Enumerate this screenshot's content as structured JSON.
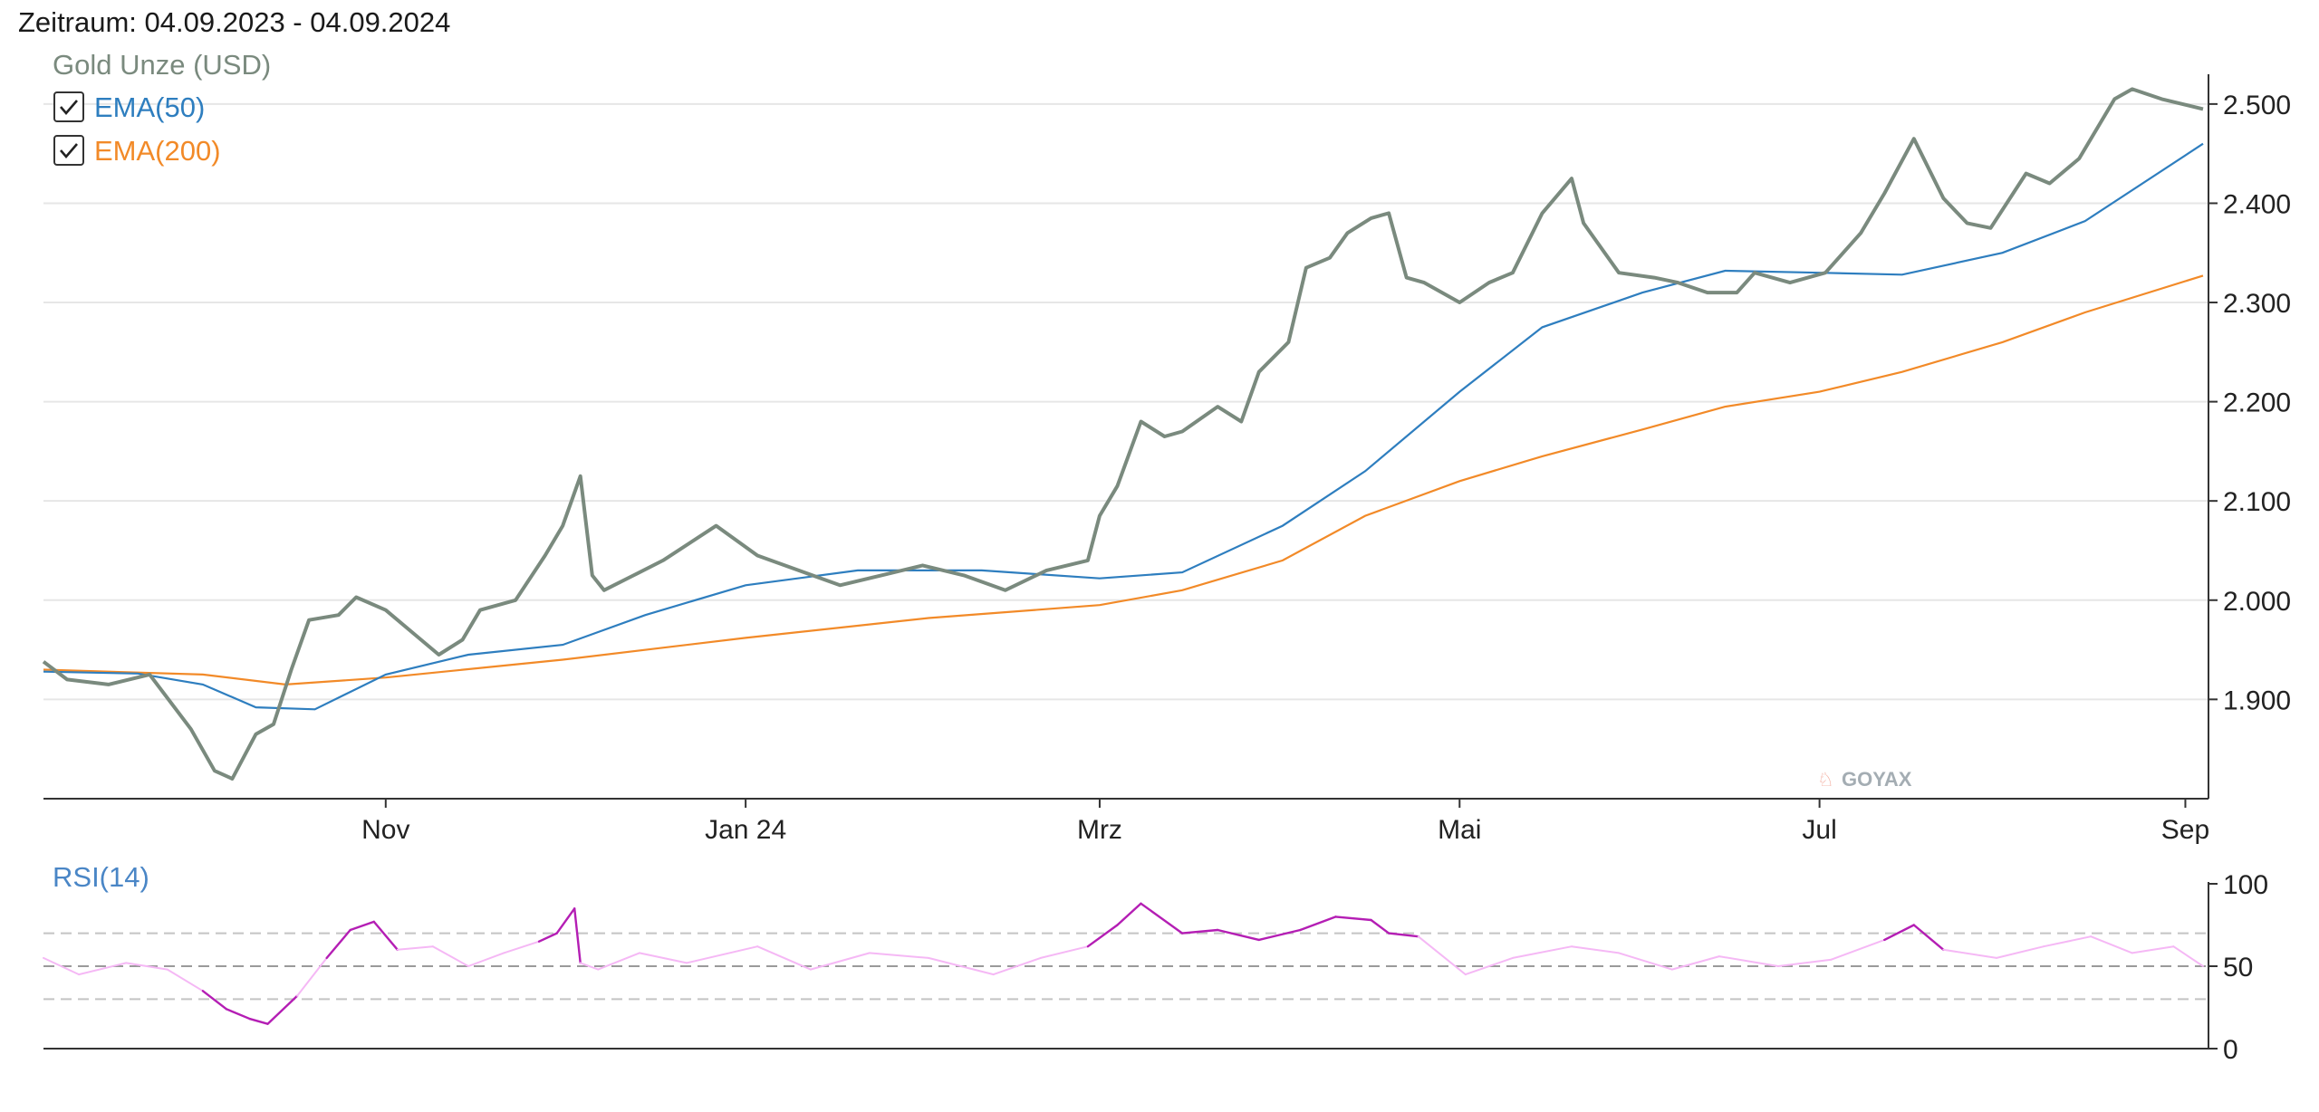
{
  "header": {
    "zeitraum": "Zeitraum: 04.09.2023 - 04.09.2024"
  },
  "watermark": "GOYAX",
  "colors": {
    "price": "#7a8a7e",
    "ema50": "#2e7ebf",
    "ema200": "#f28a28",
    "rsi_strong": "#b41eb4",
    "rsi_light": "#f5b8f5",
    "rsi_label": "#4a86c6",
    "grid": "#e6e6e6",
    "axis": "#333333"
  },
  "chart_data": [
    {
      "id": "price-chart",
      "type": "line",
      "title": "",
      "xlabel": "",
      "ylabel": "",
      "x_domain": [
        "2023-09-04",
        "2024-09-04"
      ],
      "x_ticks": [
        {
          "label": "Nov",
          "date": "2023-11-01"
        },
        {
          "label": "Jan 24",
          "date": "2024-01-01"
        },
        {
          "label": "Mrz",
          "date": "2024-03-01"
        },
        {
          "label": "Mai",
          "date": "2024-05-01"
        },
        {
          "label": "Jul",
          "date": "2024-07-01"
        },
        {
          "label": "Sep",
          "date": "2024-09-01"
        }
      ],
      "ylim": [
        1820,
        2530
      ],
      "y_ticks": [
        {
          "value": 1900,
          "label": "1.900"
        },
        {
          "value": 2000,
          "label": "2.000"
        },
        {
          "value": 2100,
          "label": "2.100"
        },
        {
          "value": 2200,
          "label": "2.200"
        },
        {
          "value": 2300,
          "label": "2.300"
        },
        {
          "value": 2400,
          "label": "2.400"
        },
        {
          "value": 2500,
          "label": "2.500"
        }
      ],
      "legend": {
        "placement": "top-left",
        "title": "Gold Unze (USD)",
        "items": [
          {
            "label": "EMA(50)",
            "checked": true
          },
          {
            "label": "EMA(200)",
            "checked": true
          }
        ]
      },
      "series": [
        {
          "name": "Gold Unze (USD)",
          "x": [
            "2023-09-04",
            "2023-09-08",
            "2023-09-15",
            "2023-09-22",
            "2023-09-29",
            "2023-10-03",
            "2023-10-06",
            "2023-10-10",
            "2023-10-13",
            "2023-10-16",
            "2023-10-19",
            "2023-10-24",
            "2023-10-27",
            "2023-11-01",
            "2023-11-06",
            "2023-11-10",
            "2023-11-14",
            "2023-11-17",
            "2023-11-23",
            "2023-11-28",
            "2023-12-01",
            "2023-12-04",
            "2023-12-06",
            "2023-12-08",
            "2023-12-13",
            "2023-12-18",
            "2023-12-27",
            "2024-01-03",
            "2024-01-10",
            "2024-01-17",
            "2024-01-24",
            "2024-01-31",
            "2024-02-07",
            "2024-02-14",
            "2024-02-21",
            "2024-02-28",
            "2024-03-01",
            "2024-03-04",
            "2024-03-08",
            "2024-03-12",
            "2024-03-15",
            "2024-03-21",
            "2024-03-25",
            "2024-03-28",
            "2024-04-02",
            "2024-04-05",
            "2024-04-09",
            "2024-04-12",
            "2024-04-16",
            "2024-04-19",
            "2024-04-22",
            "2024-04-25",
            "2024-05-01",
            "2024-05-06",
            "2024-05-10",
            "2024-05-15",
            "2024-05-20",
            "2024-05-22",
            "2024-05-28",
            "2024-06-03",
            "2024-06-07",
            "2024-06-12",
            "2024-06-17",
            "2024-06-20",
            "2024-06-26",
            "2024-07-02",
            "2024-07-08",
            "2024-07-12",
            "2024-07-17",
            "2024-07-22",
            "2024-07-26",
            "2024-07-30",
            "2024-08-05",
            "2024-08-09",
            "2024-08-14",
            "2024-08-20",
            "2024-08-23",
            "2024-08-28",
            "2024-09-04"
          ],
          "values": [
            1938,
            1920,
            1915,
            1925,
            1870,
            1828,
            1820,
            1865,
            1875,
            1930,
            1980,
            1985,
            2003,
            1990,
            1965,
            1945,
            1960,
            1990,
            2000,
            2045,
            2075,
            2125,
            2025,
            2010,
            2025,
            2040,
            2075,
            2045,
            2030,
            2015,
            2025,
            2035,
            2025,
            2010,
            2030,
            2040,
            2085,
            2115,
            2180,
            2165,
            2170,
            2195,
            2180,
            2230,
            2260,
            2335,
            2345,
            2370,
            2385,
            2390,
            2325,
            2320,
            2300,
            2320,
            2330,
            2390,
            2425,
            2380,
            2330,
            2325,
            2320,
            2310,
            2310,
            2330,
            2320,
            2330,
            2370,
            2410,
            2465,
            2405,
            2380,
            2375,
            2430,
            2420,
            2445,
            2505,
            2515,
            2505,
            2495
          ]
        },
        {
          "name": "EMA(50)",
          "x": [
            "2023-09-04",
            "2023-09-20",
            "2023-10-01",
            "2023-10-10",
            "2023-10-20",
            "2023-11-01",
            "2023-11-15",
            "2023-12-01",
            "2023-12-15",
            "2024-01-01",
            "2024-01-20",
            "2024-02-10",
            "2024-03-01",
            "2024-03-15",
            "2024-04-01",
            "2024-04-15",
            "2024-05-01",
            "2024-05-15",
            "2024-06-01",
            "2024-06-15",
            "2024-07-01",
            "2024-07-15",
            "2024-08-01",
            "2024-08-15",
            "2024-09-04"
          ],
          "values": [
            1928,
            1926,
            1915,
            1892,
            1890,
            1925,
            1945,
            1955,
            1985,
            2015,
            2030,
            2030,
            2022,
            2028,
            2075,
            2130,
            2210,
            2275,
            2310,
            2332,
            2330,
            2328,
            2350,
            2382,
            2460
          ]
        },
        {
          "name": "EMA(200)",
          "x": [
            "2023-09-04",
            "2023-10-01",
            "2023-10-15",
            "2023-11-01",
            "2023-12-01",
            "2024-01-01",
            "2024-02-01",
            "2024-03-01",
            "2024-03-15",
            "2024-04-01",
            "2024-04-15",
            "2024-05-01",
            "2024-05-15",
            "2024-06-01",
            "2024-06-15",
            "2024-07-01",
            "2024-07-15",
            "2024-08-01",
            "2024-08-15",
            "2024-09-04"
          ],
          "values": [
            1930,
            1925,
            1915,
            1922,
            1940,
            1962,
            1982,
            1995,
            2010,
            2040,
            2085,
            2120,
            2145,
            2172,
            2195,
            2210,
            2230,
            2260,
            2290,
            2327
          ]
        }
      ]
    },
    {
      "id": "rsi-chart",
      "type": "line",
      "title": "RSI(14)",
      "xlabel": "",
      "ylabel": "",
      "x_domain": [
        "2023-09-04",
        "2024-09-04"
      ],
      "ylim": [
        0,
        100
      ],
      "y_ticks": [
        {
          "value": 0,
          "label": "0"
        },
        {
          "value": 50,
          "label": "50"
        },
        {
          "value": 100,
          "label": "100"
        }
      ],
      "reference_lines": [
        30,
        50,
        70
      ],
      "overbought": 70,
      "oversold": 30,
      "series": [
        {
          "name": "RSI(14)",
          "x": [
            "2023-09-04",
            "2023-09-10",
            "2023-09-18",
            "2023-09-25",
            "2023-10-01",
            "2023-10-05",
            "2023-10-09",
            "2023-10-12",
            "2023-10-17",
            "2023-10-22",
            "2023-10-26",
            "2023-10-30",
            "2023-11-03",
            "2023-11-09",
            "2023-11-15",
            "2023-11-21",
            "2023-11-27",
            "2023-11-30",
            "2023-12-03",
            "2023-12-04",
            "2023-12-07",
            "2023-12-14",
            "2023-12-22",
            "2024-01-03",
            "2024-01-12",
            "2024-01-22",
            "2024-02-01",
            "2024-02-12",
            "2024-02-20",
            "2024-02-28",
            "2024-03-04",
            "2024-03-08",
            "2024-03-15",
            "2024-03-21",
            "2024-03-28",
            "2024-04-04",
            "2024-04-10",
            "2024-04-16",
            "2024-04-19",
            "2024-04-24",
            "2024-05-02",
            "2024-05-10",
            "2024-05-20",
            "2024-05-28",
            "2024-06-06",
            "2024-06-14",
            "2024-06-24",
            "2024-07-03",
            "2024-07-12",
            "2024-07-17",
            "2024-07-22",
            "2024-07-31",
            "2024-08-08",
            "2024-08-16",
            "2024-08-23",
            "2024-08-30",
            "2024-09-04"
          ],
          "values": [
            55,
            45,
            52,
            48,
            35,
            24,
            18,
            15,
            32,
            55,
            72,
            77,
            60,
            62,
            50,
            58,
            65,
            70,
            85,
            52,
            48,
            58,
            52,
            62,
            48,
            58,
            55,
            45,
            55,
            62,
            75,
            88,
            70,
            72,
            66,
            72,
            80,
            78,
            70,
            68,
            45,
            55,
            62,
            58,
            48,
            56,
            50,
            54,
            66,
            75,
            60,
            55,
            62,
            68,
            58,
            62,
            50
          ]
        }
      ]
    }
  ]
}
